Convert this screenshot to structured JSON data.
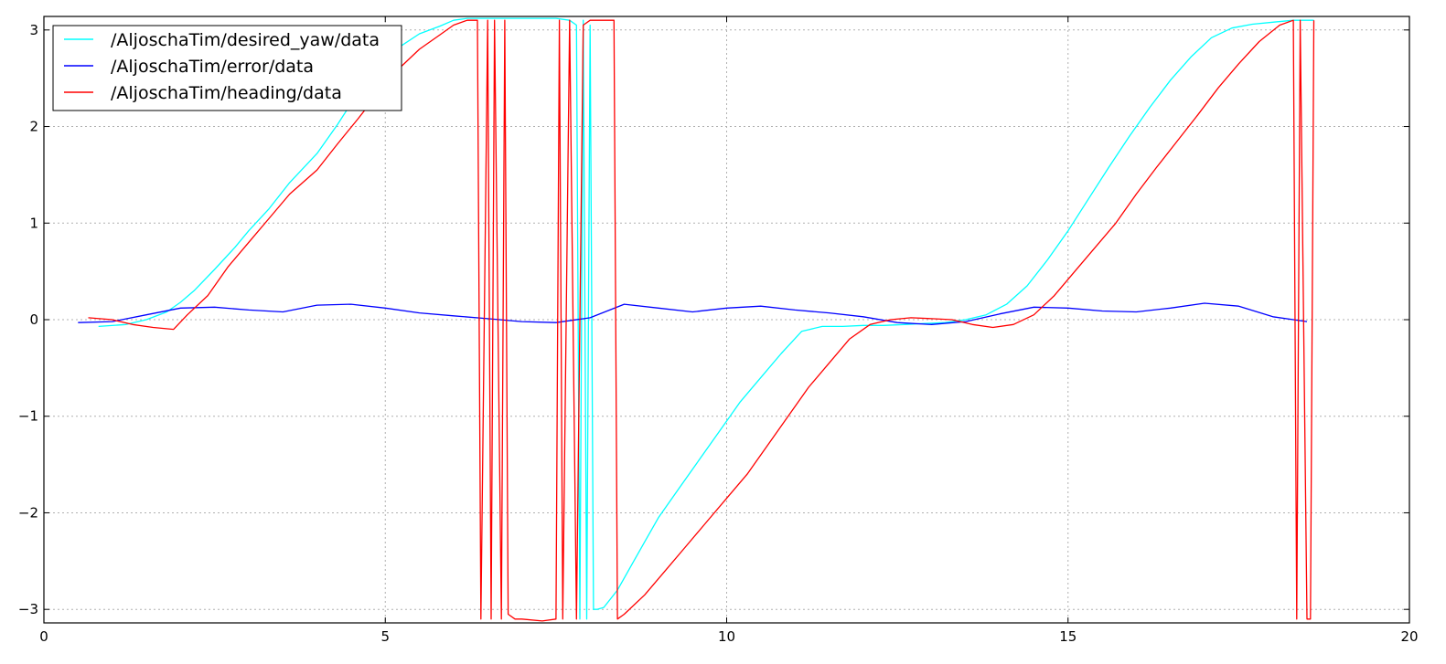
{
  "chart_data": {
    "type": "line",
    "xlim": [
      0,
      20
    ],
    "ylim": [
      -3.14,
      3.14
    ],
    "x_ticks": [
      0,
      5,
      10,
      15,
      20
    ],
    "x_tick_labels": [
      "0",
      "5",
      "10",
      "15",
      "20"
    ],
    "y_ticks": [
      -3,
      -2,
      -1,
      0,
      1,
      2,
      3
    ],
    "y_tick_labels": [
      "−3",
      "−2",
      "−1",
      "0",
      "1",
      "2",
      "3"
    ],
    "grid": true,
    "legend_position": "top-left",
    "series": [
      {
        "name": "/AljoschaTim/desired_yaw/data",
        "color": "#00ffff",
        "x": [
          0.8,
          1.2,
          1.5,
          1.8,
          2.0,
          2.2,
          2.5,
          2.8,
          3.0,
          3.3,
          3.6,
          4.0,
          4.3,
          4.6,
          4.9,
          5.2,
          5.5,
          5.8,
          6.0,
          6.2,
          6.5,
          6.8,
          7.0,
          7.3,
          7.5,
          7.7,
          7.8,
          7.85,
          7.9,
          7.95,
          8.0,
          8.05,
          8.1,
          8.2,
          8.4,
          8.6,
          8.8,
          9.0,
          9.3,
          9.6,
          9.9,
          10.2,
          10.5,
          10.8,
          11.1,
          11.4,
          11.7,
          12.0,
          12.3,
          12.6,
          12.9,
          13.2,
          13.5,
          13.8,
          14.1,
          14.4,
          14.7,
          15.0,
          15.3,
          15.6,
          15.9,
          16.2,
          16.5,
          16.8,
          17.1,
          17.4,
          17.7,
          18.0,
          18.3,
          18.6
        ],
        "y": [
          -0.07,
          -0.05,
          0.0,
          0.08,
          0.18,
          0.3,
          0.52,
          0.75,
          0.92,
          1.15,
          1.42,
          1.72,
          2.02,
          2.35,
          2.6,
          2.82,
          2.96,
          3.04,
          3.1,
          3.12,
          3.12,
          3.12,
          3.12,
          3.12,
          3.12,
          3.1,
          3.05,
          -3.1,
          3.1,
          -3.1,
          3.05,
          -3.0,
          -3.0,
          -2.98,
          -2.8,
          -2.55,
          -2.3,
          -2.05,
          -1.75,
          -1.45,
          -1.15,
          -0.85,
          -0.6,
          -0.35,
          -0.12,
          -0.07,
          -0.07,
          -0.06,
          -0.06,
          -0.05,
          -0.04,
          -0.03,
          0.0,
          0.05,
          0.16,
          0.35,
          0.62,
          0.92,
          1.25,
          1.58,
          1.9,
          2.2,
          2.48,
          2.72,
          2.92,
          3.02,
          3.06,
          3.08,
          3.1,
          3.1
        ]
      },
      {
        "name": "/AljoschaTim/error/data",
        "color": "#0000ff",
        "x": [
          0.5,
          1.0,
          1.5,
          2.0,
          2.5,
          3.0,
          3.5,
          4.0,
          4.5,
          5.0,
          5.5,
          6.0,
          6.5,
          7.0,
          7.5,
          8.0,
          8.5,
          9.0,
          9.5,
          10.0,
          10.5,
          11.0,
          11.5,
          12.0,
          12.5,
          13.0,
          13.5,
          14.0,
          14.5,
          15.0,
          15.5,
          16.0,
          16.5,
          17.0,
          17.5,
          18.0,
          18.5
        ],
        "y": [
          -0.03,
          -0.02,
          0.05,
          0.12,
          0.13,
          0.1,
          0.08,
          0.15,
          0.16,
          0.12,
          0.07,
          0.04,
          0.01,
          -0.02,
          -0.03,
          0.02,
          0.16,
          0.12,
          0.08,
          0.12,
          0.14,
          0.1,
          0.07,
          0.03,
          -0.03,
          -0.05,
          -0.02,
          0.06,
          0.13,
          0.12,
          0.09,
          0.08,
          0.12,
          0.17,
          0.14,
          0.03,
          -0.02
        ]
      },
      {
        "name": "/AljoschaTim/heading/data",
        "color": "#ff0000",
        "x": [
          0.65,
          1.0,
          1.3,
          1.6,
          1.9,
          2.1,
          2.4,
          2.7,
          3.0,
          3.3,
          3.6,
          4.0,
          4.3,
          4.6,
          4.9,
          5.2,
          5.5,
          5.8,
          6.0,
          6.2,
          6.35,
          6.4,
          6.5,
          6.55,
          6.6,
          6.7,
          6.75,
          6.8,
          6.9,
          7.0,
          7.3,
          7.5,
          7.55,
          7.6,
          7.7,
          7.8,
          7.9,
          8.0,
          8.2,
          8.35,
          8.4,
          8.5,
          8.8,
          9.1,
          9.4,
          9.7,
          10.0,
          10.3,
          10.6,
          10.9,
          11.2,
          11.5,
          11.8,
          12.1,
          12.4,
          12.7,
          13.0,
          13.3,
          13.6,
          13.9,
          14.2,
          14.5,
          14.8,
          15.1,
          15.4,
          15.7,
          16.0,
          16.3,
          16.6,
          16.9,
          17.2,
          17.5,
          17.8,
          18.1,
          18.3,
          18.35,
          18.4,
          18.5,
          18.55,
          18.6
        ],
        "y": [
          0.02,
          0.0,
          -0.05,
          -0.08,
          -0.1,
          0.05,
          0.25,
          0.55,
          0.8,
          1.05,
          1.3,
          1.55,
          1.82,
          2.08,
          2.35,
          2.6,
          2.8,
          2.95,
          3.05,
          3.1,
          3.1,
          -3.1,
          3.1,
          -3.1,
          3.1,
          -3.1,
          3.1,
          -3.05,
          -3.1,
          -3.1,
          -3.12,
          -3.1,
          3.1,
          -3.1,
          3.1,
          -3.1,
          3.05,
          3.1,
          3.1,
          3.1,
          -3.1,
          -3.05,
          -2.85,
          -2.6,
          -2.35,
          -2.1,
          -1.85,
          -1.6,
          -1.3,
          -1.0,
          -0.7,
          -0.45,
          -0.2,
          -0.05,
          0.0,
          0.02,
          0.01,
          0.0,
          -0.05,
          -0.08,
          -0.05,
          0.05,
          0.25,
          0.5,
          0.75,
          1.0,
          1.3,
          1.58,
          1.85,
          2.12,
          2.4,
          2.65,
          2.88,
          3.05,
          3.1,
          -3.1,
          3.1,
          -3.1,
          -3.1,
          3.1
        ]
      }
    ]
  }
}
